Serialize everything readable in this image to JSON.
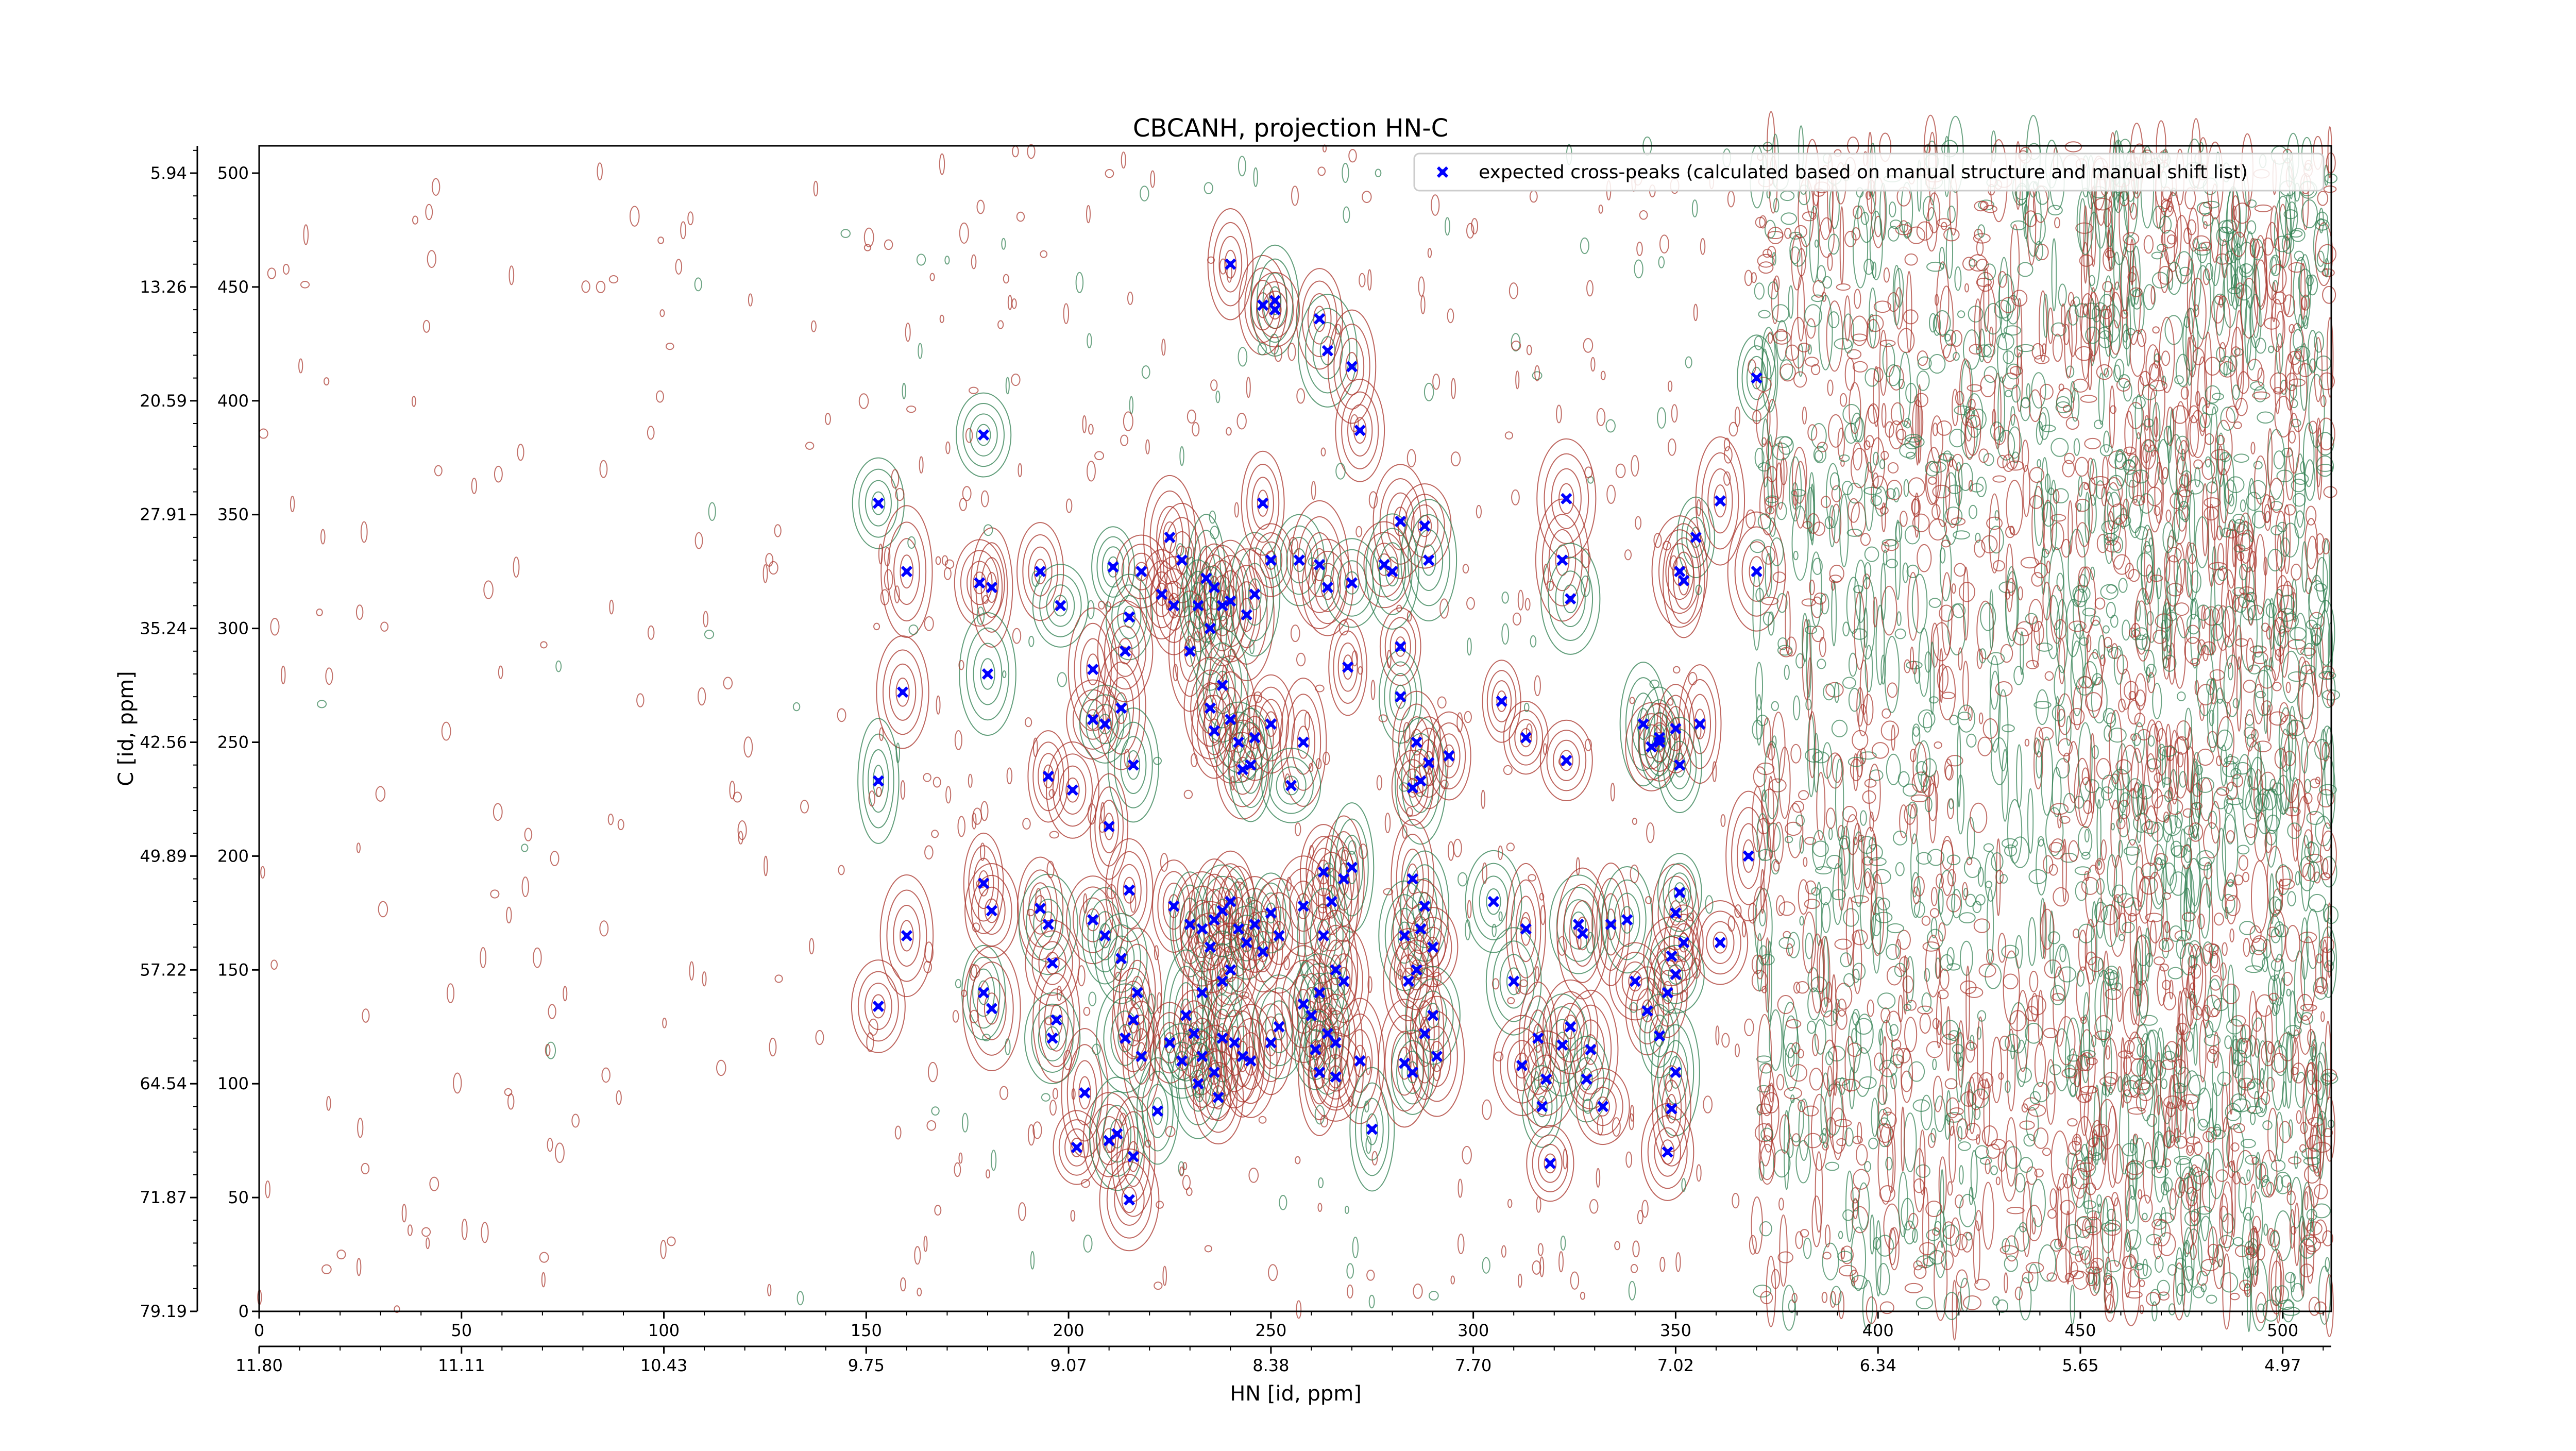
{
  "chart_data": {
    "type": "scatter",
    "title": "CBCANH, projection HN-C",
    "xlabel": "HN [id, ppm]",
    "ylabel": "C [id, ppm]",
    "xlim": [
      0,
      512
    ],
    "ylim": [
      0,
      512
    ],
    "x_ticks": [
      0,
      50,
      100,
      150,
      200,
      250,
      300,
      350,
      400,
      450,
      500
    ],
    "y_ticks": [
      0,
      50,
      100,
      150,
      200,
      250,
      300,
      350,
      400,
      450,
      500
    ],
    "x_ppm_ticks": [
      {
        "pos": 0,
        "label": "11.80"
      },
      {
        "pos": 50,
        "label": "11.11"
      },
      {
        "pos": 100,
        "label": "10.43"
      },
      {
        "pos": 150,
        "label": "9.75"
      },
      {
        "pos": 200,
        "label": "9.07"
      },
      {
        "pos": 250,
        "label": "8.38"
      },
      {
        "pos": 300,
        "label": "7.70"
      },
      {
        "pos": 350,
        "label": "7.02"
      },
      {
        "pos": 400,
        "label": "6.34"
      },
      {
        "pos": 450,
        "label": "5.65"
      },
      {
        "pos": 500,
        "label": "4.97"
      }
    ],
    "y_ppm_ticks": [
      {
        "pos": 0,
        "label": "79.19"
      },
      {
        "pos": 50,
        "label": "71.87"
      },
      {
        "pos": 100,
        "label": "64.54"
      },
      {
        "pos": 150,
        "label": "57.22"
      },
      {
        "pos": 200,
        "label": "49.89"
      },
      {
        "pos": 250,
        "label": "42.56"
      },
      {
        "pos": 300,
        "label": "35.24"
      },
      {
        "pos": 350,
        "label": "27.91"
      },
      {
        "pos": 400,
        "label": "20.59"
      },
      {
        "pos": 450,
        "label": "13.26"
      },
      {
        "pos": 500,
        "label": "5.94"
      }
    ],
    "grid": false,
    "legend_position": "top-right",
    "colors": {
      "peaks": "#0000ff",
      "positive_contour": "#2e7d4f",
      "negative_contour": "#a8332a",
      "axis": "#000000"
    },
    "series": [
      {
        "name": "expected cross-peaks (calculated based on manual structure and manual shift list)",
        "marker": "x",
        "points": [
          [
            153,
            355
          ],
          [
            160,
            325
          ],
          [
            159,
            272
          ],
          [
            153,
            233
          ],
          [
            160,
            165
          ],
          [
            153,
            134
          ],
          [
            179,
            385
          ],
          [
            178,
            320
          ],
          [
            181,
            318
          ],
          [
            180,
            280
          ],
          [
            179,
            188
          ],
          [
            181,
            176
          ],
          [
            179,
            140
          ],
          [
            181,
            133
          ],
          [
            193,
            325
          ],
          [
            198,
            310
          ],
          [
            195,
            235
          ],
          [
            193,
            177
          ],
          [
            195,
            170
          ],
          [
            196,
            153
          ],
          [
            197,
            128
          ],
          [
            196,
            120
          ],
          [
            206,
            282
          ],
          [
            206,
            260
          ],
          [
            209,
            258
          ],
          [
            201,
            229
          ],
          [
            206,
            172
          ],
          [
            209,
            165
          ],
          [
            204,
            96
          ],
          [
            202,
            72
          ],
          [
            211,
            327
          ],
          [
            218,
            325
          ],
          [
            223,
            315
          ],
          [
            215,
            305
          ],
          [
            214,
            290
          ],
          [
            213,
            265
          ],
          [
            216,
            240
          ],
          [
            210,
            213
          ],
          [
            215,
            185
          ],
          [
            213,
            155
          ],
          [
            217,
            140
          ],
          [
            216,
            128
          ],
          [
            214,
            120
          ],
          [
            218,
            112
          ],
          [
            210,
            75
          ],
          [
            212,
            78
          ],
          [
            216,
            68
          ],
          [
            215,
            49
          ],
          [
            222,
            88
          ],
          [
            225,
            340
          ],
          [
            228,
            330
          ],
          [
            234,
            322
          ],
          [
            236,
            318
          ],
          [
            238,
            310
          ],
          [
            235,
            300
          ],
          [
            230,
            290
          ],
          [
            226,
            310
          ],
          [
            232,
            310
          ],
          [
            240,
            312
          ],
          [
            244,
            306
          ],
          [
            246,
            315
          ],
          [
            250,
            330
          ],
          [
            248,
            355
          ],
          [
            238,
            275
          ],
          [
            235,
            265
          ],
          [
            240,
            260
          ],
          [
            242,
            250
          ],
          [
            246,
            252
          ],
          [
            243,
            238
          ],
          [
            245,
            240
          ],
          [
            236,
            255
          ],
          [
            226,
            178
          ],
          [
            230,
            170
          ],
          [
            233,
            168
          ],
          [
            236,
            172
          ],
          [
            238,
            176
          ],
          [
            240,
            180
          ],
          [
            242,
            168
          ],
          [
            244,
            162
          ],
          [
            246,
            170
          ],
          [
            248,
            158
          ],
          [
            250,
            175
          ],
          [
            252,
            165
          ],
          [
            240,
            150
          ],
          [
            238,
            145
          ],
          [
            235,
            160
          ],
          [
            233,
            140
          ],
          [
            229,
            130
          ],
          [
            231,
            122
          ],
          [
            241,
            118
          ],
          [
            238,
            120
          ],
          [
            243,
            112
          ],
          [
            250,
            118
          ],
          [
            252,
            125
          ],
          [
            245,
            110
          ],
          [
            225,
            118
          ],
          [
            228,
            110
          ],
          [
            233,
            112
          ],
          [
            236,
            105
          ],
          [
            232,
            100
          ],
          [
            237,
            94
          ],
          [
            250,
            258
          ],
          [
            257,
            330
          ],
          [
            262,
            328
          ],
          [
            264,
            318
          ],
          [
            270,
            320
          ],
          [
            269,
            283
          ],
          [
            258,
            250
          ],
          [
            255,
            231
          ],
          [
            263,
            193
          ],
          [
            268,
            190
          ],
          [
            270,
            195
          ],
          [
            265,
            180
          ],
          [
            258,
            178
          ],
          [
            263,
            165
          ],
          [
            266,
            150
          ],
          [
            268,
            145
          ],
          [
            262,
            140
          ],
          [
            258,
            135
          ],
          [
            260,
            130
          ],
          [
            264,
            122
          ],
          [
            266,
            118
          ],
          [
            272,
            110
          ],
          [
            261,
            115
          ],
          [
            262,
            105
          ],
          [
            266,
            103
          ],
          [
            275,
            80
          ],
          [
            282,
            347
          ],
          [
            288,
            345
          ],
          [
            289,
            330
          ],
          [
            278,
            328
          ],
          [
            282,
            292
          ],
          [
            282,
            270
          ],
          [
            286,
            250
          ],
          [
            289,
            241
          ],
          [
            287,
            233
          ],
          [
            285,
            230
          ],
          [
            285,
            190
          ],
          [
            288,
            178
          ],
          [
            290,
            160
          ],
          [
            287,
            168
          ],
          [
            283,
            165
          ],
          [
            286,
            150
          ],
          [
            284,
            145
          ],
          [
            290,
            130
          ],
          [
            288,
            122
          ],
          [
            291,
            112
          ],
          [
            285,
            105
          ],
          [
            283,
            109
          ],
          [
            262,
            436
          ],
          [
            264,
            422
          ],
          [
            270,
            415
          ],
          [
            272,
            387
          ],
          [
            280,
            325
          ],
          [
            294,
            244
          ],
          [
            307,
            268
          ],
          [
            305,
            180
          ],
          [
            313,
            252
          ],
          [
            313,
            168
          ],
          [
            310,
            145
          ],
          [
            323,
            357
          ],
          [
            322,
            330
          ],
          [
            324,
            313
          ],
          [
            323,
            242
          ],
          [
            324,
            125
          ],
          [
            322,
            117
          ],
          [
            312,
            108
          ],
          [
            316,
            120
          ],
          [
            317,
            90
          ],
          [
            318,
            102
          ],
          [
            319,
            65
          ],
          [
            326,
            170
          ],
          [
            327,
            166
          ],
          [
            329,
            115
          ],
          [
            328,
            102
          ],
          [
            332,
            90
          ],
          [
            334,
            170
          ],
          [
            342,
            258
          ],
          [
            344,
            248
          ],
          [
            346,
            250
          ],
          [
            338,
            172
          ],
          [
            340,
            145
          ],
          [
            343,
            132
          ],
          [
            346,
            121
          ],
          [
            348,
            140
          ],
          [
            349,
            156
          ],
          [
            350,
            105
          ],
          [
            349,
            89
          ],
          [
            348,
            70
          ],
          [
            355,
            340
          ],
          [
            352,
            321
          ],
          [
            351,
            325
          ],
          [
            346,
            252
          ],
          [
            356,
            258
          ],
          [
            350,
            256
          ],
          [
            351,
            240
          ],
          [
            350,
            175
          ],
          [
            352,
            162
          ],
          [
            350,
            148
          ],
          [
            361,
            356
          ],
          [
            361,
            162
          ],
          [
            370,
            410
          ],
          [
            370,
            325
          ],
          [
            368,
            200
          ],
          [
            351,
            184
          ],
          [
            240,
            460
          ],
          [
            248,
            442
          ],
          [
            251,
            444
          ],
          [
            251,
            440
          ]
        ]
      }
    ]
  }
}
